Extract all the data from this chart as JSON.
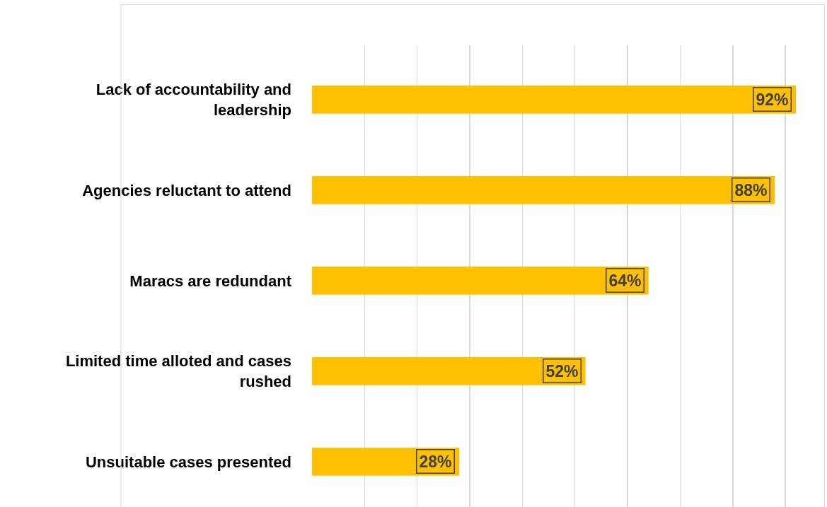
{
  "chart_data": {
    "type": "bar",
    "orientation": "horizontal",
    "categories": [
      "Lack of accountability and leadership",
      "Agencies reluctant to attend",
      "Maracs are redundant",
      "Limited time alloted and cases rushed",
      "Unsuitable cases presented"
    ],
    "values": [
      92,
      88,
      64,
      52,
      28
    ],
    "value_labels": [
      "92%",
      "88%",
      "64%",
      "52%",
      "28%"
    ],
    "color": "#ffc000",
    "grid": "x",
    "legend": false,
    "tick_labels": "y"
  }
}
